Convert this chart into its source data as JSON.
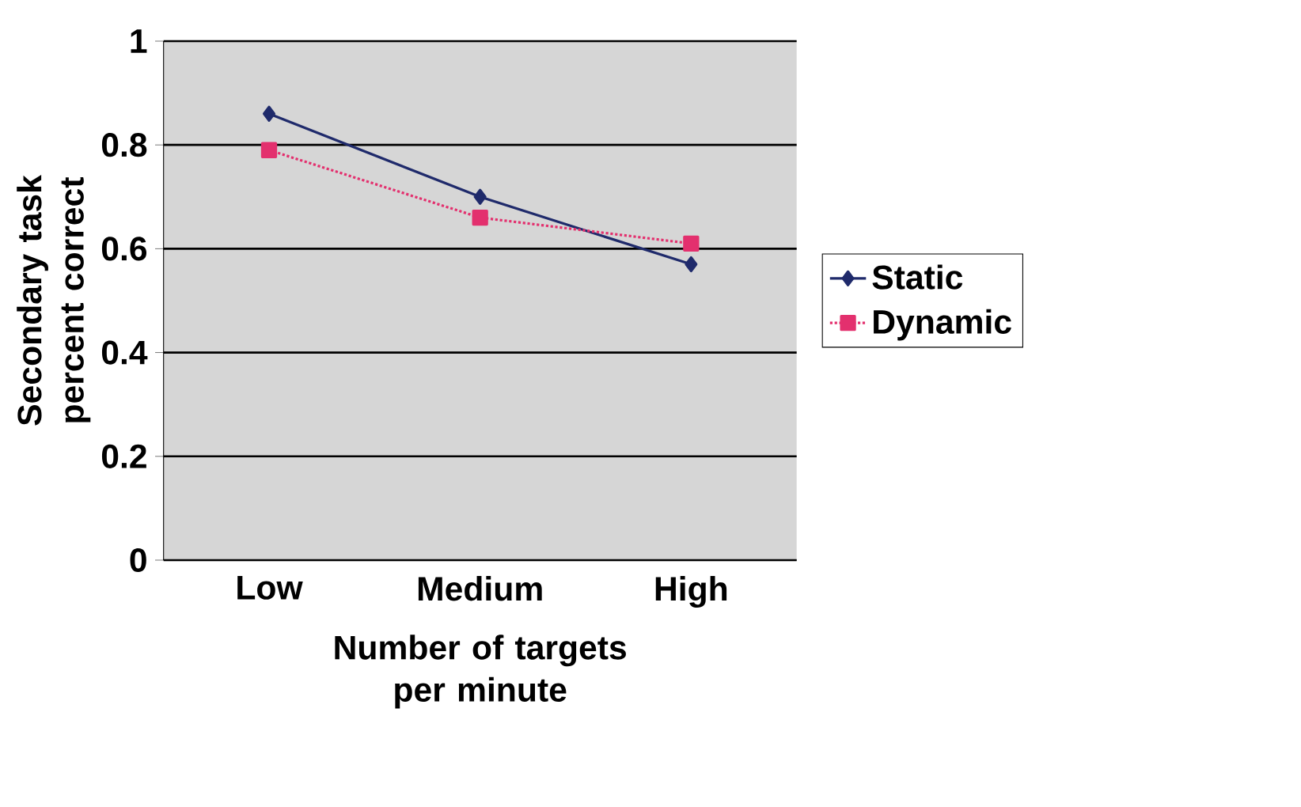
{
  "chart_data": {
    "type": "line",
    "xlabel": "Number of targets per minute",
    "ylabel": "Secondary task percent correct",
    "categories": [
      "Low",
      "Medium",
      "High"
    ],
    "series": [
      {
        "name": "Static",
        "color": "#1f2a6b",
        "values": [
          0.86,
          0.7,
          0.57
        ],
        "marker": "diamond",
        "line_style": "solid"
      },
      {
        "name": "Dynamic",
        "color": "#e3306e",
        "values": [
          0.79,
          0.66,
          0.61
        ],
        "marker": "square",
        "line_style": "dotted"
      }
    ],
    "ylim": [
      0,
      1
    ],
    "yticks": [
      0,
      0.2,
      0.4,
      0.6,
      0.8,
      1
    ],
    "grid": "y",
    "legend": "right"
  }
}
